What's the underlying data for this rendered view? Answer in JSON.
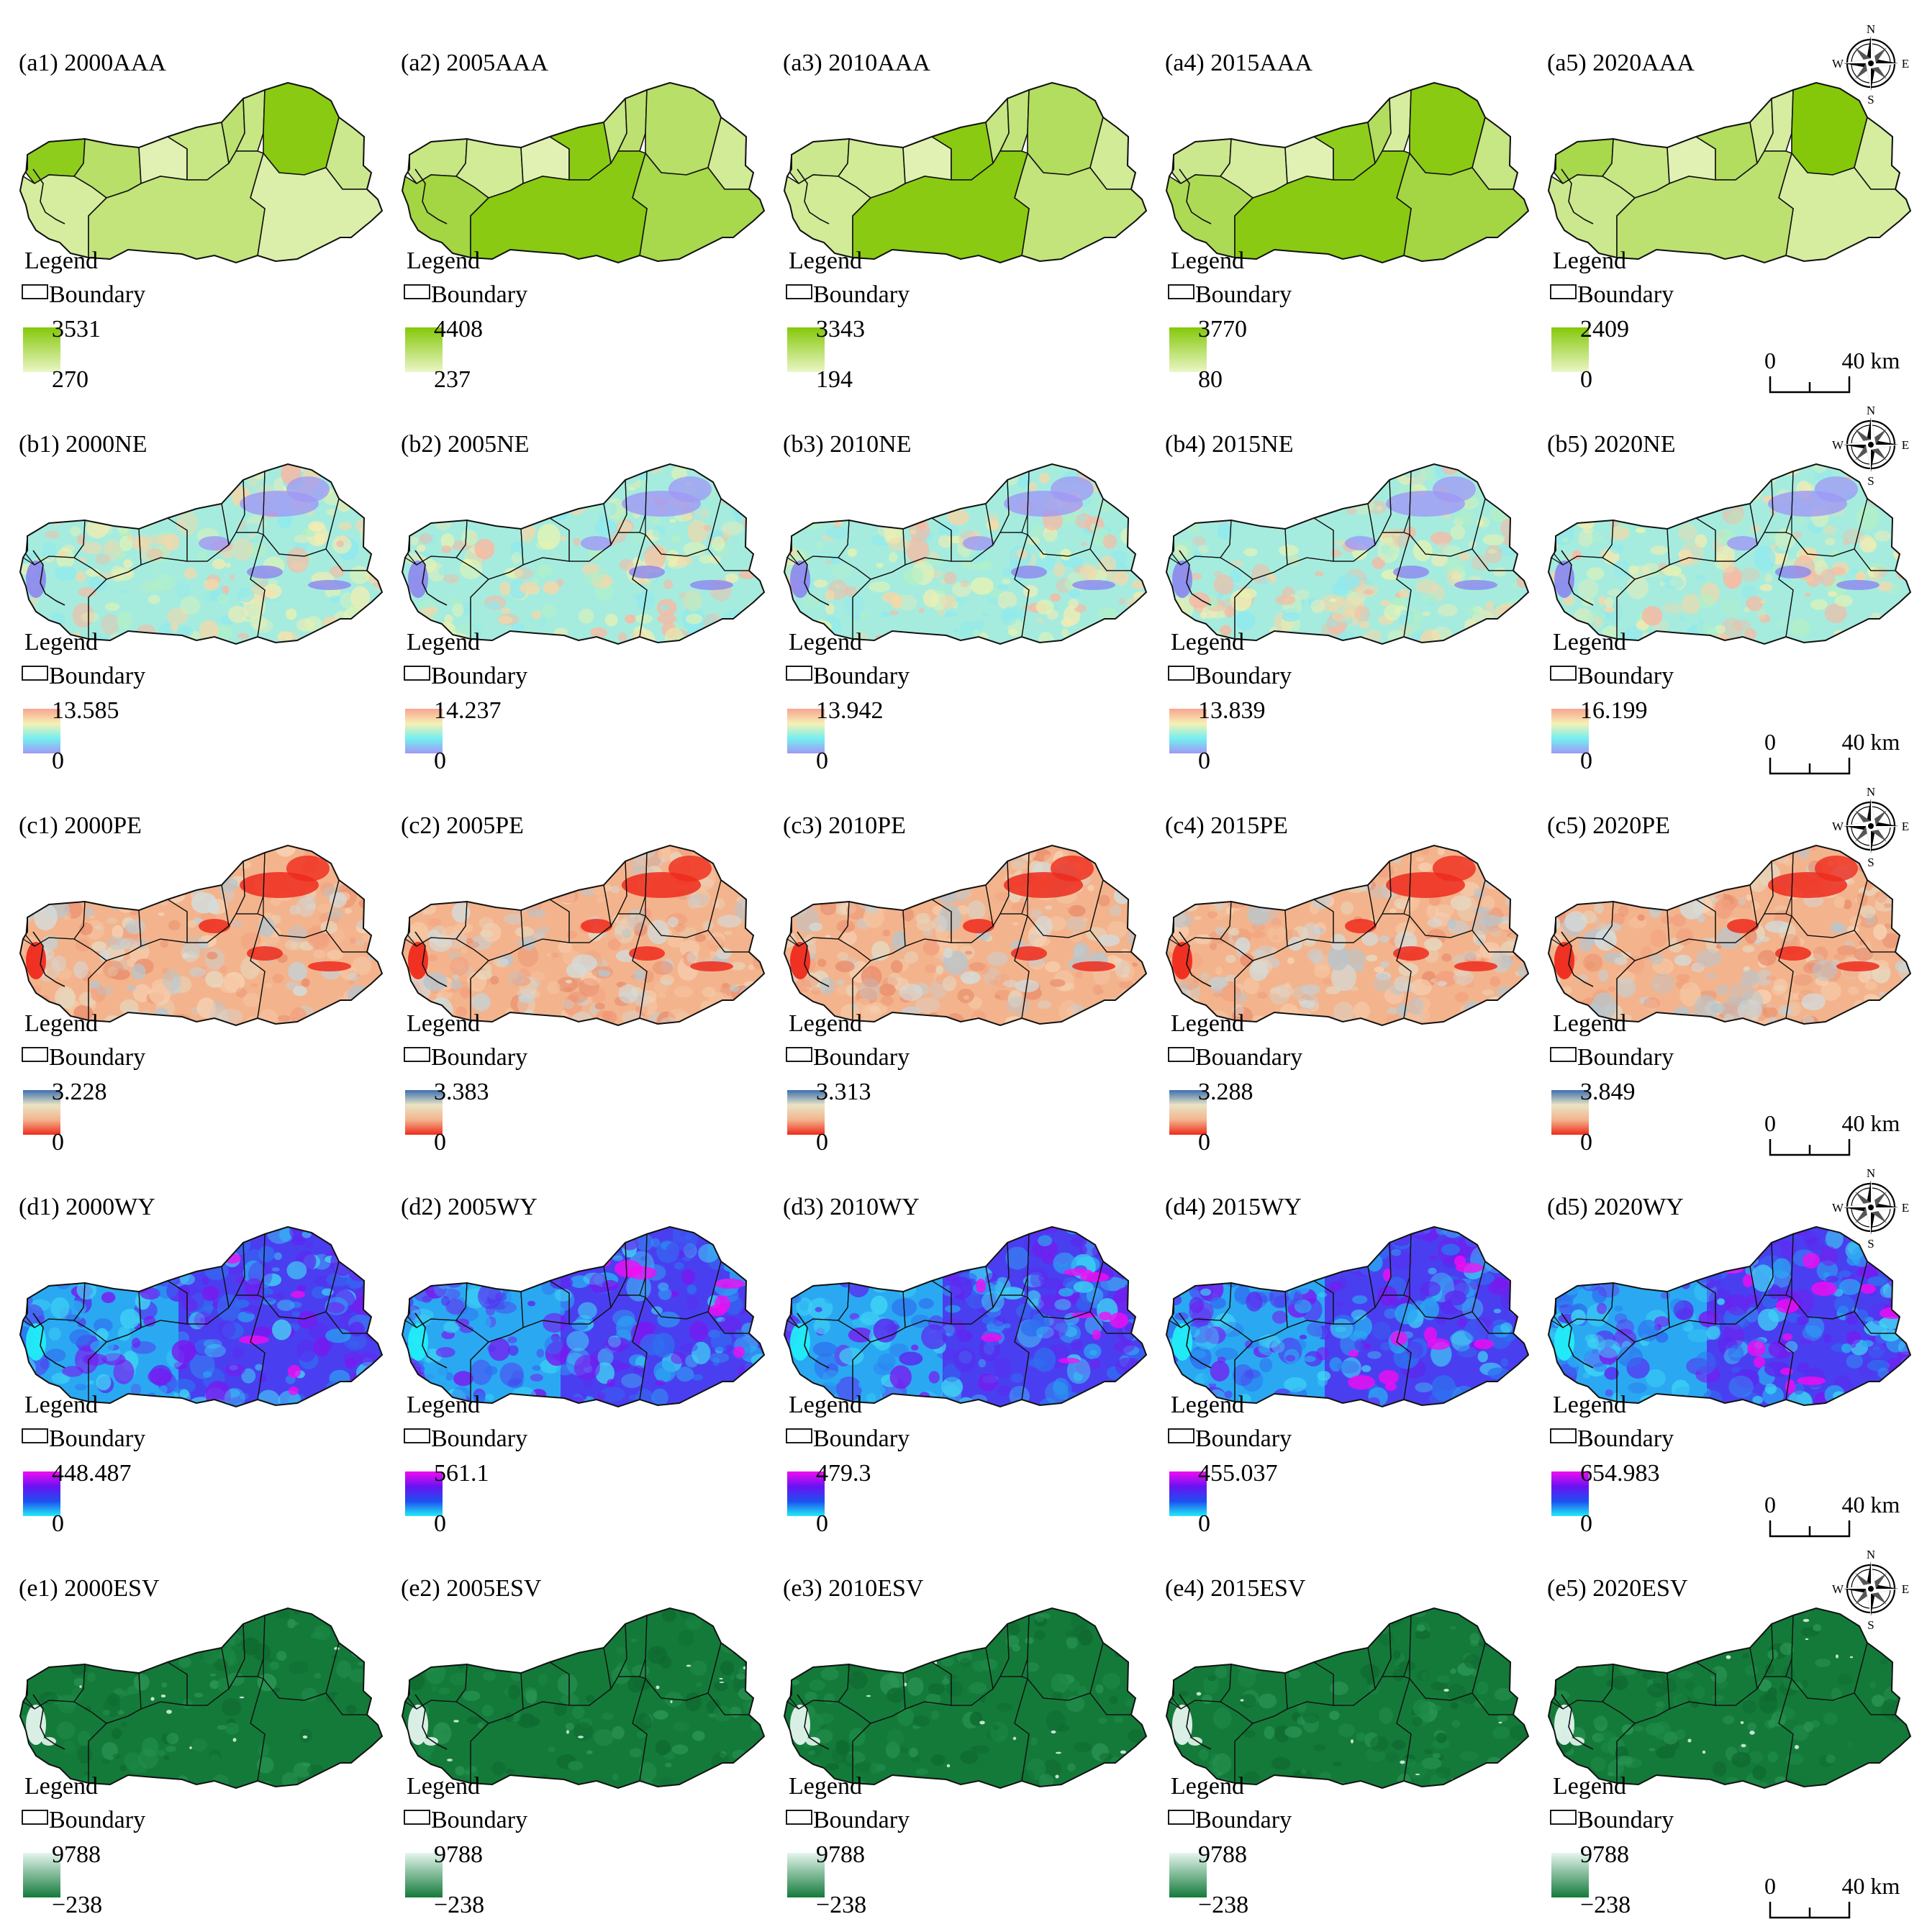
{
  "legend": {
    "heading": "Legend"
  },
  "compass": {
    "n": "N",
    "s": "S",
    "e": "E",
    "w": "W"
  },
  "scale_bar": {
    "zero": "0",
    "end": "40 km"
  },
  "rows": [
    {
      "key": "AAA",
      "ramp": [
        "#85c80a",
        "#eaf6c6"
      ],
      "panels": [
        {
          "title": "(a1) 2000AAA",
          "boundary": "Boundary",
          "max": "3531",
          "min": "270",
          "regions": [
            0.9,
            0.5,
            0.1,
            0.35,
            0.45,
            0.35,
            0.95,
            0.3,
            0.15,
            0.2,
            0.4
          ]
        },
        {
          "title": "(a2) 2005AAA",
          "boundary": "Boundary",
          "max": "4408",
          "min": "237",
          "regions": [
            0.35,
            0.25,
            0.1,
            0.95,
            0.35,
            0.45,
            0.5,
            0.25,
            0.65,
            0.7,
            0.95
          ]
        },
        {
          "title": "(a3) 2010AAA",
          "boundary": "Boundary",
          "max": "3343",
          "min": "194",
          "regions": [
            0.3,
            0.25,
            0.1,
            0.95,
            0.35,
            0.4,
            0.55,
            0.25,
            0.4,
            0.25,
            0.95
          ]
        },
        {
          "title": "(a4) 2015AAA",
          "boundary": "Boundary",
          "max": "3770",
          "min": "80",
          "regions": [
            0.3,
            0.2,
            0.1,
            0.9,
            0.55,
            0.2,
            0.95,
            0.35,
            0.7,
            0.6,
            0.95
          ]
        },
        {
          "title": "(a5) 2020AAA",
          "boundary": "Boundary",
          "max": "2409",
          "min": "0",
          "regions": [
            0.65,
            0.35,
            0.1,
            0.55,
            0.25,
            0.2,
            1.0,
            0.2,
            0.2,
            0.3,
            0.45
          ]
        }
      ]
    },
    {
      "key": "NE",
      "ramp": [
        "#f9a48f",
        "#f5f0b4",
        "#74f0f0",
        "#9f98f5"
      ],
      "panels": [
        {
          "title": "(b1) 2000NE",
          "boundary": "Boundary",
          "max": "13.585",
          "min": "0"
        },
        {
          "title": "(b2) 2005NE",
          "boundary": "Boundary",
          "max": "14.237",
          "min": "0"
        },
        {
          "title": "(b3) 2010NE",
          "boundary": "Boundary",
          "max": "13.942",
          "min": "0"
        },
        {
          "title": "(b4) 2015NE",
          "boundary": "Boundary",
          "max": "13.839",
          "min": "0"
        },
        {
          "title": "(b5) 2020NE",
          "boundary": "Boundary",
          "max": "16.199",
          "min": "0"
        }
      ]
    },
    {
      "key": "PE",
      "ramp": [
        "#3c6fb0",
        "#e9e4c4",
        "#f3b48d",
        "#ef2a1c"
      ],
      "panels": [
        {
          "title": "(c1) 2000PE",
          "boundary": "Boundary",
          "max": "3.228",
          "min": "0"
        },
        {
          "title": "(c2) 2005PE",
          "boundary": "Boundary",
          "max": "3.383",
          "min": "0"
        },
        {
          "title": "(c3) 2010PE",
          "boundary": "Boundary",
          "max": "3.313",
          "min": "0"
        },
        {
          "title": "(c4) 2015PE",
          "boundary": "Bouandary",
          "max": "3.288",
          "min": "0"
        },
        {
          "title": "(c5) 2020PE",
          "boundary": "Boundary",
          "max": "3.849",
          "min": "0"
        }
      ]
    },
    {
      "key": "WY",
      "ramp": [
        "#f20cf2",
        "#6a12f2",
        "#1e4ff0",
        "#22ecf8"
      ],
      "panels": [
        {
          "title": "(d1) 2000WY",
          "boundary": "Boundary",
          "max": "448.487",
          "min": "0"
        },
        {
          "title": "(d2) 2005WY",
          "boundary": "Boundary",
          "max": "561.1",
          "min": "0"
        },
        {
          "title": "(d3) 2010WY",
          "boundary": "Boundary",
          "max": "479.3",
          "min": "0"
        },
        {
          "title": "(d4) 2015WY",
          "boundary": "Boundary",
          "max": "455.037",
          "min": "0"
        },
        {
          "title": "(d5) 2020WY",
          "boundary": "Boundary",
          "max": "654.983",
          "min": "0"
        }
      ]
    },
    {
      "key": "ESV",
      "ramp": [
        "#e4f6ee",
        "#147a3a"
      ],
      "panels": [
        {
          "title": "(e1) 2000ESV",
          "boundary": "Boundary",
          "max": "9788",
          "min": "−238"
        },
        {
          "title": "(e2) 2005ESV",
          "boundary": "Boundary",
          "max": "9788",
          "min": "−238"
        },
        {
          "title": "(e3) 2010ESV",
          "boundary": "Boundary",
          "max": "9788",
          "min": "−238"
        },
        {
          "title": "(e4) 2015ESV",
          "boundary": "Boundary",
          "max": "9788",
          "min": "−238"
        },
        {
          "title": "(e5) 2020ESV",
          "boundary": "Boundary",
          "max": "9788",
          "min": "−238"
        }
      ]
    }
  ]
}
